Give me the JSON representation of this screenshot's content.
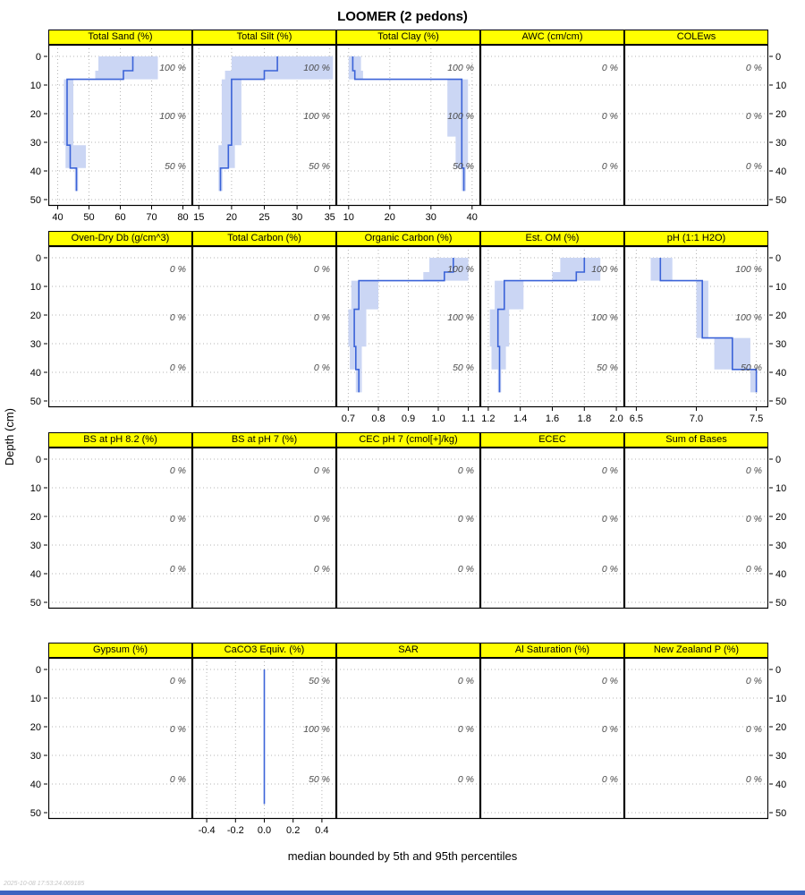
{
  "title": "LOOMER (2 pedons)",
  "ylabel": "Depth (cm)",
  "caption": "median bounded by 5th and 95th percentiles",
  "timestamp": "2025-10-08 17:53:24.069185",
  "colors": {
    "band": "#cbd6f4",
    "line": "#3b63d8",
    "grid": "#b5b5b5",
    "header_bg": "#ffff00",
    "annotation": "#4a4a4a",
    "axis": "#000000",
    "bottom_bar": "#3e63c0"
  },
  "depth_ticks": [
    0,
    10,
    20,
    30,
    40,
    50
  ],
  "chart_data": {
    "type": "line",
    "ylabel": "Depth (cm)",
    "ylim": [
      0,
      55
    ],
    "description": "Soil property depth profiles for LOOMER (2 pedons): blue step line is the median, shaded band spans the 5th-95th percentiles; right-side italic labels are contributing fractions.",
    "rows": [
      {
        "panels": [
          {
            "label": "Total Sand (%)",
            "xlim": [
              37,
              83
            ],
            "xticks": [
              {
                "v": 40,
                "label": "40"
              },
              {
                "v": 50,
                "label": "50"
              },
              {
                "v": 60,
                "label": "60"
              },
              {
                "v": 70,
                "label": "70"
              },
              {
                "v": 80,
                "label": "80"
              }
            ],
            "annotations": [
              {
                "depth": 4,
                "text": "100 %"
              },
              {
                "depth": 21,
                "text": "100 %"
              },
              {
                "depth": 38.5,
                "text": "50 %"
              }
            ],
            "segments": [
              {
                "top": 0,
                "bottom": 5,
                "lo": 53,
                "med": 64,
                "hi": 72
              },
              {
                "top": 5,
                "bottom": 8,
                "lo": 52,
                "med": 61,
                "hi": 72
              },
              {
                "top": 8,
                "bottom": 31,
                "lo": 42,
                "med": 43,
                "hi": 45
              },
              {
                "top": 31,
                "bottom": 39,
                "lo": 42.5,
                "med": 44,
                "hi": 49
              },
              {
                "top": 39,
                "bottom": 47,
                "lo": 45.5,
                "med": 46,
                "hi": 46.5
              }
            ]
          },
          {
            "label": "Total Silt (%)",
            "xlim": [
              14,
              36
            ],
            "xticks": [
              {
                "v": 15,
                "label": "15"
              },
              {
                "v": 20,
                "label": "20"
              },
              {
                "v": 25,
                "label": "25"
              },
              {
                "v": 30,
                "label": "30"
              },
              {
                "v": 35,
                "label": "35"
              }
            ],
            "annotations": [
              {
                "depth": 4,
                "text": "100 %"
              },
              {
                "depth": 21,
                "text": "100 %"
              },
              {
                "depth": 38.5,
                "text": "50 %"
              }
            ],
            "segments": [
              {
                "top": 0,
                "bottom": 5,
                "lo": 20,
                "med": 27,
                "hi": 35.5
              },
              {
                "top": 5,
                "bottom": 8,
                "lo": 19,
                "med": 25,
                "hi": 35.5
              },
              {
                "top": 8,
                "bottom": 31,
                "lo": 18.5,
                "med": 20,
                "hi": 21.5
              },
              {
                "top": 31,
                "bottom": 39,
                "lo": 18,
                "med": 19.5,
                "hi": 20.5
              },
              {
                "top": 39,
                "bottom": 47,
                "lo": 18,
                "med": 18.3,
                "hi": 18.6
              }
            ]
          },
          {
            "label": "Total Clay (%)",
            "xlim": [
              7,
              42
            ],
            "xticks": [
              {
                "v": 10,
                "label": "10"
              },
              {
                "v": 20,
                "label": "20"
              },
              {
                "v": 30,
                "label": "30"
              },
              {
                "v": 40,
                "label": "40"
              }
            ],
            "annotations": [
              {
                "depth": 4,
                "text": "100 %"
              },
              {
                "depth": 21,
                "text": "100 %"
              },
              {
                "depth": 38.5,
                "text": "50 %"
              }
            ],
            "segments": [
              {
                "top": 0,
                "bottom": 5,
                "lo": 10,
                "med": 11,
                "hi": 13
              },
              {
                "top": 5,
                "bottom": 8,
                "lo": 10,
                "med": 11.5,
                "hi": 13.5
              },
              {
                "top": 8,
                "bottom": 28,
                "lo": 34,
                "med": 37.5,
                "hi": 39
              },
              {
                "top": 28,
                "bottom": 39,
                "lo": 36,
                "med": 37.5,
                "hi": 39
              },
              {
                "top": 39,
                "bottom": 47,
                "lo": 37.5,
                "med": 38,
                "hi": 38.5
              }
            ]
          },
          {
            "label": "AWC (cm/cm)",
            "xlim": [
              0,
              1
            ],
            "xticks": [],
            "annotations": [
              {
                "depth": 4,
                "text": "0 %"
              },
              {
                "depth": 21,
                "text": "0 %"
              },
              {
                "depth": 38.5,
                "text": "0 %"
              }
            ],
            "segments": []
          },
          {
            "label": "COLEws",
            "xlim": [
              0,
              1
            ],
            "xticks": [],
            "annotations": [
              {
                "depth": 4,
                "text": "0 %"
              },
              {
                "depth": 21,
                "text": "0 %"
              },
              {
                "depth": 38.5,
                "text": "0 %"
              }
            ],
            "segments": []
          }
        ]
      },
      {
        "panels": [
          {
            "label": "Oven-Dry Db (g/cm^3)",
            "xlim": [
              0,
              1
            ],
            "xticks": [],
            "annotations": [
              {
                "depth": 4,
                "text": "0 %"
              },
              {
                "depth": 21,
                "text": "0 %"
              },
              {
                "depth": 38.5,
                "text": "0 %"
              }
            ],
            "segments": []
          },
          {
            "label": "Total Carbon (%)",
            "xlim": [
              0,
              1
            ],
            "xticks": [],
            "annotations": [
              {
                "depth": 4,
                "text": "0 %"
              },
              {
                "depth": 21,
                "text": "0 %"
              },
              {
                "depth": 38.5,
                "text": "0 %"
              }
            ],
            "segments": []
          },
          {
            "label": "Organic Carbon (%)",
            "xlim": [
              0.66,
              1.14
            ],
            "xticks": [
              {
                "v": 0.7,
                "label": "0.7"
              },
              {
                "v": 0.8,
                "label": "0.8"
              },
              {
                "v": 0.9,
                "label": "0.9"
              },
              {
                "v": 1.0,
                "label": "1.0"
              },
              {
                "v": 1.1,
                "label": "1.1"
              }
            ],
            "annotations": [
              {
                "depth": 4,
                "text": "100 %"
              },
              {
                "depth": 21,
                "text": "100 %"
              },
              {
                "depth": 38.5,
                "text": "50 %"
              }
            ],
            "segments": [
              {
                "top": 0,
                "bottom": 5,
                "lo": 0.97,
                "med": 1.05,
                "hi": 1.1
              },
              {
                "top": 5,
                "bottom": 8,
                "lo": 0.95,
                "med": 1.02,
                "hi": 1.1
              },
              {
                "top": 8,
                "bottom": 18,
                "lo": 0.71,
                "med": 0.735,
                "hi": 0.8
              },
              {
                "top": 18,
                "bottom": 31,
                "lo": 0.7,
                "med": 0.72,
                "hi": 0.76
              },
              {
                "top": 31,
                "bottom": 39,
                "lo": 0.705,
                "med": 0.725,
                "hi": 0.745
              },
              {
                "top": 39,
                "bottom": 47,
                "lo": 0.725,
                "med": 0.735,
                "hi": 0.745
              }
            ]
          },
          {
            "label": "Est. OM (%)",
            "xlim": [
              1.15,
              2.05
            ],
            "xticks": [
              {
                "v": 1.2,
                "label": "1.2"
              },
              {
                "v": 1.4,
                "label": "1.4"
              },
              {
                "v": 1.6,
                "label": "1.6"
              },
              {
                "v": 1.8,
                "label": "1.8"
              },
              {
                "v": 2.0,
                "label": "2.0"
              }
            ],
            "annotations": [
              {
                "depth": 4,
                "text": "100 %"
              },
              {
                "depth": 21,
                "text": "100 %"
              },
              {
                "depth": 38.5,
                "text": "50 %"
              }
            ],
            "segments": [
              {
                "top": 0,
                "bottom": 5,
                "lo": 1.65,
                "med": 1.8,
                "hi": 1.9
              },
              {
                "top": 5,
                "bottom": 8,
                "lo": 1.6,
                "med": 1.75,
                "hi": 1.9
              },
              {
                "top": 8,
                "bottom": 18,
                "lo": 1.24,
                "med": 1.3,
                "hi": 1.42
              },
              {
                "top": 18,
                "bottom": 31,
                "lo": 1.21,
                "med": 1.26,
                "hi": 1.33
              },
              {
                "top": 31,
                "bottom": 39,
                "lo": 1.22,
                "med": 1.27,
                "hi": 1.31
              },
              {
                "top": 39,
                "bottom": 47,
                "lo": 1.26,
                "med": 1.27,
                "hi": 1.28
              }
            ]
          },
          {
            "label": "pH (1:1 H2O)",
            "xlim": [
              6.4,
              7.6
            ],
            "xticks": [
              {
                "v": 6.5,
                "label": "6.5"
              },
              {
                "v": 7.0,
                "label": "7.0"
              },
              {
                "v": 7.5,
                "label": "7.5"
              }
            ],
            "annotations": [
              {
                "depth": 4,
                "text": "100 %"
              },
              {
                "depth": 21,
                "text": "100 %"
              },
              {
                "depth": 38.5,
                "text": "50 %"
              }
            ],
            "segments": [
              {
                "top": 0,
                "bottom": 8,
                "lo": 6.62,
                "med": 6.7,
                "hi": 6.8
              },
              {
                "top": 8,
                "bottom": 28,
                "lo": 7.0,
                "med": 7.05,
                "hi": 7.1
              },
              {
                "top": 28,
                "bottom": 39,
                "lo": 7.15,
                "med": 7.3,
                "hi": 7.45
              },
              {
                "top": 39,
                "bottom": 47,
                "lo": 7.45,
                "med": 7.5,
                "hi": 7.5
              }
            ]
          }
        ]
      },
      {
        "panels": [
          {
            "label": "BS at pH 8.2 (%)",
            "xlim": [
              0,
              1
            ],
            "xticks": [],
            "annotations": [
              {
                "depth": 4,
                "text": "0 %"
              },
              {
                "depth": 21,
                "text": "0 %"
              },
              {
                "depth": 38.5,
                "text": "0 %"
              }
            ],
            "segments": []
          },
          {
            "label": "BS at pH 7 (%)",
            "xlim": [
              0,
              1
            ],
            "xticks": [],
            "annotations": [
              {
                "depth": 4,
                "text": "0 %"
              },
              {
                "depth": 21,
                "text": "0 %"
              },
              {
                "depth": 38.5,
                "text": "0 %"
              }
            ],
            "segments": []
          },
          {
            "label": "CEC pH 7 (cmol[+]/kg)",
            "xlim": [
              0,
              1
            ],
            "xticks": [],
            "annotations": [
              {
                "depth": 4,
                "text": "0 %"
              },
              {
                "depth": 21,
                "text": "0 %"
              },
              {
                "depth": 38.5,
                "text": "0 %"
              }
            ],
            "segments": []
          },
          {
            "label": "ECEC",
            "xlim": [
              0,
              1
            ],
            "xticks": [],
            "annotations": [
              {
                "depth": 4,
                "text": "0 %"
              },
              {
                "depth": 21,
                "text": "0 %"
              },
              {
                "depth": 38.5,
                "text": "0 %"
              }
            ],
            "segments": []
          },
          {
            "label": "Sum of Bases",
            "xlim": [
              0,
              1
            ],
            "xticks": [],
            "annotations": [
              {
                "depth": 4,
                "text": "0 %"
              },
              {
                "depth": 21,
                "text": "0 %"
              },
              {
                "depth": 38.5,
                "text": "0 %"
              }
            ],
            "segments": []
          }
        ]
      },
      {
        "panels": [
          {
            "label": "Gypsum (%)",
            "xlim": [
              0,
              1
            ],
            "xticks": [],
            "annotations": [
              {
                "depth": 4,
                "text": "0 %"
              },
              {
                "depth": 21,
                "text": "0 %"
              },
              {
                "depth": 38.5,
                "text": "0 %"
              }
            ],
            "segments": []
          },
          {
            "label": "CaCO3 Equiv. (%)",
            "xlim": [
              -0.5,
              0.5
            ],
            "xticks": [
              {
                "v": -0.4,
                "label": "-0.4"
              },
              {
                "v": -0.2,
                "label": "-0.2"
              },
              {
                "v": 0.0,
                "label": "0.0"
              },
              {
                "v": 0.2,
                "label": "0.2"
              },
              {
                "v": 0.4,
                "label": "0.4"
              }
            ],
            "annotations": [
              {
                "depth": 4,
                "text": "50 %"
              },
              {
                "depth": 21,
                "text": "100 %"
              },
              {
                "depth": 38.5,
                "text": "50 %"
              }
            ],
            "segments": [
              {
                "top": 0,
                "bottom": 47,
                "lo": 0,
                "med": 0,
                "hi": 0
              }
            ]
          },
          {
            "label": "SAR",
            "xlim": [
              0,
              1
            ],
            "xticks": [],
            "annotations": [
              {
                "depth": 4,
                "text": "0 %"
              },
              {
                "depth": 21,
                "text": "0 %"
              },
              {
                "depth": 38.5,
                "text": "0 %"
              }
            ],
            "segments": []
          },
          {
            "label": "Al Saturation (%)",
            "xlim": [
              0,
              1
            ],
            "xticks": [],
            "annotations": [
              {
                "depth": 4,
                "text": "0 %"
              },
              {
                "depth": 21,
                "text": "0 %"
              },
              {
                "depth": 38.5,
                "text": "0 %"
              }
            ],
            "segments": []
          },
          {
            "label": "New Zealand P (%)",
            "xlim": [
              0,
              1
            ],
            "xticks": [],
            "annotations": [
              {
                "depth": 4,
                "text": "0 %"
              },
              {
                "depth": 21,
                "text": "0 %"
              },
              {
                "depth": 38.5,
                "text": "0 %"
              }
            ],
            "segments": []
          }
        ]
      }
    ]
  }
}
